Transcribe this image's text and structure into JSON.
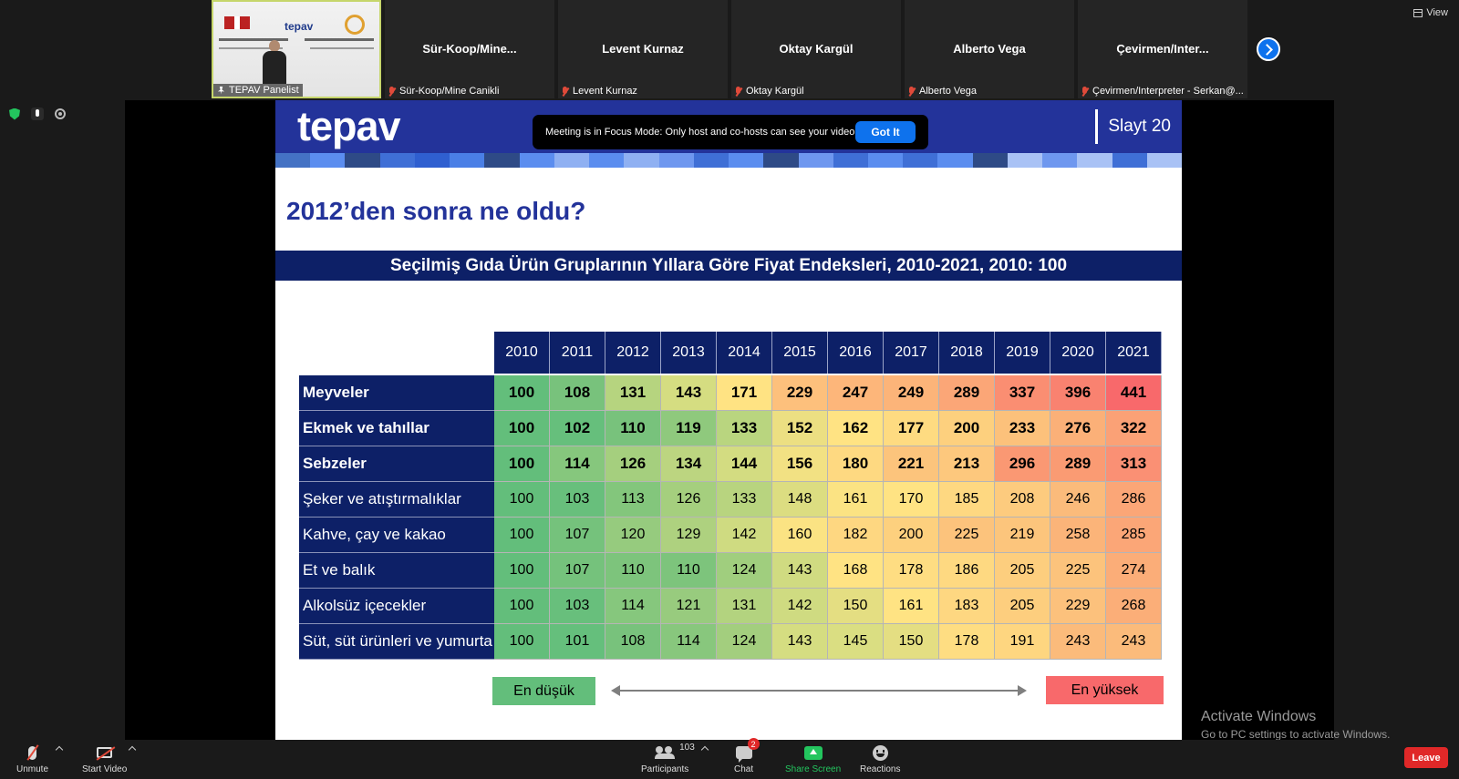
{
  "gallery": {
    "tiles": [
      {
        "name": "",
        "label": "TEPAV Panelist",
        "pinned": true,
        "video": true
      },
      {
        "name": "Sür-Koop/Mine...",
        "label": "Sür-Koop/Mine Canikli"
      },
      {
        "name": "Levent Kurnaz",
        "label": "Levent Kurnaz"
      },
      {
        "name": "Oktay Kargül",
        "label": "Oktay Kargül"
      },
      {
        "name": "Alberto Vega",
        "label": "Alberto Vega"
      },
      {
        "name": "Çevirmen/Inter...",
        "label": "Çevirmen/Interpreter - Serkan@..."
      }
    ],
    "thumb_logo": "tepav",
    "view_label": "View"
  },
  "notice": {
    "text": "Meeting is in Focus Mode: Only host and co-hosts can see your video.",
    "button": "Got It"
  },
  "slide": {
    "brand": "tepav",
    "slide_number": "Slayt 20",
    "headline": "2012’den sonra ne oldu?",
    "banner": "Seçilmiş Gıda Ürün Gruplarının Yıllara Göre Fiyat Endeksleri, 2010-2021, 2010: 100",
    "stripe_colors": [
      "#4472c4",
      "#5b8def",
      "#2e4a86",
      "#3f6fd6",
      "#2f5fd0",
      "#4a7fe6",
      "#2e4a86",
      "#5b8def",
      "#8fb0f2",
      "#5b8def",
      "#8fb0f2",
      "#6e97ef",
      "#3f6fd6",
      "#5b8def",
      "#2e4a86",
      "#6e97ef",
      "#3f6fd6",
      "#5b8def",
      "#3f6fd6",
      "#5b8def",
      "#2e4a86",
      "#a9c2f5",
      "#6e97ef",
      "#a9c2f5",
      "#3f6fd6",
      "#a9c2f5"
    ],
    "years": [
      "2010",
      "2011",
      "2012",
      "2013",
      "2014",
      "2015",
      "2016",
      "2017",
      "2018",
      "2019",
      "2020",
      "2021"
    ],
    "rows": [
      {
        "label": "Meyveler",
        "bold": true,
        "values": [
          "100",
          "108",
          "131",
          "143",
          "171",
          "229",
          "247",
          "249",
          "289",
          "337",
          "396",
          "441"
        ],
        "colors": [
          "#63be7b",
          "#78c27c",
          "#b6d47f",
          "#d5dd81",
          "#ffe383",
          "#fdc07c",
          "#fdb67a",
          "#fcb479",
          "#fba677",
          "#fa8e72",
          "#f98270",
          "#f8696b"
        ]
      },
      {
        "label": "Ekmek ve tahıllar",
        "bold": true,
        "values": [
          "100",
          "102",
          "110",
          "119",
          "133",
          "152",
          "162",
          "177",
          "200",
          "233",
          "276",
          "322"
        ],
        "colors": [
          "#63be7b",
          "#66bf7c",
          "#78c27c",
          "#8fc97d",
          "#b9d57f",
          "#ecdf82",
          "#ffe383",
          "#fedb81",
          "#fdd07e",
          "#fcc17b",
          "#fbb078",
          "#fba176"
        ]
      },
      {
        "label": "Sebzeler",
        "bold": true,
        "values": [
          "100",
          "114",
          "126",
          "134",
          "144",
          "156",
          "180",
          "221",
          "213",
          "296",
          "289",
          "313"
        ],
        "colors": [
          "#63be7b",
          "#86c77d",
          "#a5cf7e",
          "#bcd580",
          "#d3dc81",
          "#f2e183",
          "#fed981",
          "#fcc47c",
          "#fdc87d",
          "#fa9873",
          "#fa9b73",
          "#fa9074"
        ]
      },
      {
        "label": "Şeker ve atıştırmalıklar",
        "bold": false,
        "values": [
          "100",
          "103",
          "113",
          "126",
          "133",
          "148",
          "161",
          "170",
          "185",
          "208",
          "246",
          "286"
        ],
        "colors": [
          "#63be7b",
          "#68bf7c",
          "#83c67c",
          "#a5cf7e",
          "#b8d47f",
          "#dcdd81",
          "#fbe383",
          "#ffe383",
          "#fed881",
          "#fdcb7e",
          "#fbbb7b",
          "#fba677"
        ]
      },
      {
        "label": "Kahve, çay ve kakao",
        "bold": false,
        "values": [
          "100",
          "107",
          "120",
          "129",
          "142",
          "160",
          "182",
          "200",
          "225",
          "219",
          "258",
          "285"
        ],
        "colors": [
          "#63be7b",
          "#75c27c",
          "#96cb7e",
          "#aed17f",
          "#cfdb81",
          "#fbe383",
          "#fed781",
          "#fdd07e",
          "#fcc37c",
          "#fcc57c",
          "#fbb479",
          "#fba677"
        ]
      },
      {
        "label": "Et ve balık",
        "bold": false,
        "values": [
          "100",
          "107",
          "110",
          "110",
          "124",
          "143",
          "168",
          "178",
          "186",
          "205",
          "225",
          "274"
        ],
        "colors": [
          "#63be7b",
          "#75c27c",
          "#7dc47c",
          "#7dc47c",
          "#a0ce7e",
          "#d0db81",
          "#ffe383",
          "#fedd82",
          "#fed981",
          "#fdce7e",
          "#fcc37c",
          "#fbad78"
        ]
      },
      {
        "label": "Alkolsüz içecekler",
        "bold": false,
        "values": [
          "100",
          "103",
          "114",
          "121",
          "131",
          "142",
          "150",
          "161",
          "183",
          "205",
          "229",
          "268"
        ],
        "colors": [
          "#63be7b",
          "#68bf7c",
          "#86c77d",
          "#98cb7e",
          "#b3d37f",
          "#cfdb81",
          "#e4de82",
          "#ffe383",
          "#fed781",
          "#fdce7e",
          "#fcc17c",
          "#fbae78"
        ]
      },
      {
        "label": "Süt, süt ürünleri ve yumurta",
        "bold": false,
        "values": [
          "100",
          "101",
          "108",
          "114",
          "124",
          "143",
          "145",
          "150",
          "178",
          "191",
          "243",
          "243"
        ],
        "colors": [
          "#63be7b",
          "#65bf7c",
          "#78c27c",
          "#88c77d",
          "#a3ce7e",
          "#d5dd81",
          "#dade82",
          "#e4de82",
          "#fedd82",
          "#fed680",
          "#fbbb7b",
          "#fbbb7b"
        ]
      }
    ],
    "legend_low": "En düşük",
    "legend_high": "En yüksek",
    "legend_low_color": "#63be7b",
    "legend_high_color": "#f8696b"
  },
  "watermark": {
    "line1": "Activate Windows",
    "line2": "Go to PC settings to activate Windows."
  },
  "toolbar": {
    "unmute": "Unmute",
    "start_video": "Start Video",
    "participants": "Participants",
    "participants_count": "103",
    "chat": "Chat",
    "chat_badge": "2",
    "share_screen": "Share Screen",
    "reactions": "Reactions",
    "leave": "Leave"
  },
  "colors": {
    "accent": "#0e72ed",
    "share_green": "#23c55e",
    "leave_red": "#e02828",
    "slide_blue": "#23339a",
    "table_navy": "#0d2067"
  }
}
